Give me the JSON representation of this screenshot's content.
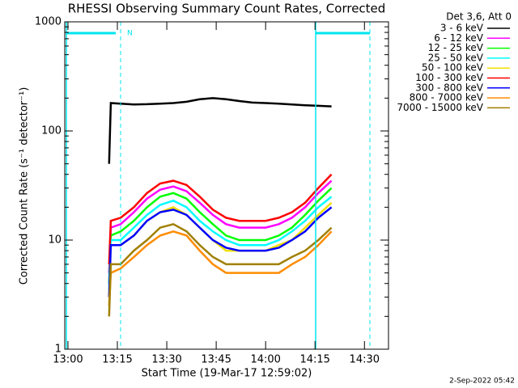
{
  "chart_data": {
    "type": "line",
    "title": "RHESSI Observing Summary Count Rates, Corrected",
    "x_label": "Start Time (19-Mar-17 12:59:02)",
    "y_label": "Corrected Count Rate (s⁻¹ detector⁻¹)",
    "legend_title": "Det 3,6, Att 0",
    "annotation": "N",
    "footer": "2-Sep-2022 05:42",
    "log_scale": true,
    "legend": "outside-right",
    "xlim": [
      -0.97,
      97.3
    ],
    "xticks": [
      {
        "value": 0,
        "label": "13:00"
      },
      {
        "value": 15,
        "label": "13:15"
      },
      {
        "value": 30,
        "label": "13:30"
      },
      {
        "value": 45,
        "label": "13:45"
      },
      {
        "value": 60,
        "label": "14:00"
      },
      {
        "value": 75,
        "label": "14:15"
      },
      {
        "value": 90,
        "label": "14:30"
      }
    ],
    "ylim": [
      1,
      1000
    ],
    "yticks": [
      1,
      10,
      100,
      1000
    ],
    "x": [
      12.5,
      13,
      16,
      20,
      24,
      28,
      32,
      36,
      40,
      44,
      48,
      52,
      56,
      60,
      64,
      68,
      72,
      76,
      80
    ],
    "series": [
      {
        "name": "3 - 6 keV",
        "color": "#000000",
        "values": [
          50,
          180,
          178,
          175,
          176,
          178,
          180,
          185,
          195,
          200,
          195,
          188,
          182,
          180,
          178,
          175,
          172,
          170,
          168
        ]
      },
      {
        "name": "6 - 12 keV",
        "color": "#ff00ff",
        "values": [
          5,
          13,
          14,
          18,
          24,
          29,
          31,
          28,
          22,
          17,
          14,
          13,
          13,
          13,
          14,
          16,
          20,
          27,
          35
        ]
      },
      {
        "name": "12 - 25 keV",
        "color": "#00ff00",
        "values": [
          4,
          11,
          12,
          15,
          20,
          25,
          27,
          24,
          18,
          14,
          11,
          10,
          10,
          10,
          11,
          13,
          17,
          23,
          30
        ]
      },
      {
        "name": "25 - 50 keV",
        "color": "#00ffff",
        "values": [
          3.5,
          10,
          10,
          13,
          17,
          21,
          23,
          20,
          15,
          12,
          10,
          9,
          9,
          9,
          10,
          12,
          15,
          20,
          25
        ]
      },
      {
        "name": "50 - 100 keV",
        "color": "#f0e000",
        "values": [
          3,
          9,
          9,
          11,
          15,
          18,
          20,
          17,
          13,
          10,
          8,
          8,
          8,
          8,
          9,
          10,
          13,
          17,
          22
        ]
      },
      {
        "name": "100 - 300 keV",
        "color": "#ff0000",
        "values": [
          6,
          15,
          16,
          20,
          27,
          33,
          35,
          32,
          25,
          19,
          16,
          15,
          15,
          15,
          16,
          18,
          22,
          30,
          40
        ]
      },
      {
        "name": "300 - 800 keV",
        "color": "#0000ff",
        "values": [
          3,
          9,
          9,
          11,
          15,
          18,
          19,
          17,
          13,
          10,
          8.5,
          8,
          8,
          8,
          8.5,
          10,
          12,
          16,
          20
        ]
      },
      {
        "name": "800 - 7000 keV",
        "color": "#ff8c00",
        "values": [
          2.5,
          5,
          5.5,
          7,
          9,
          11,
          12,
          11,
          8,
          6,
          5,
          5,
          5,
          5,
          5,
          6,
          7,
          9,
          12
        ]
      },
      {
        "name": "7000 - 15000 keV",
        "color": "#a08000",
        "values": [
          2,
          6,
          6,
          8,
          10,
          13,
          14,
          12,
          9,
          7,
          6,
          6,
          6,
          6,
          6,
          7,
          8,
          10,
          13
        ]
      }
    ]
  }
}
